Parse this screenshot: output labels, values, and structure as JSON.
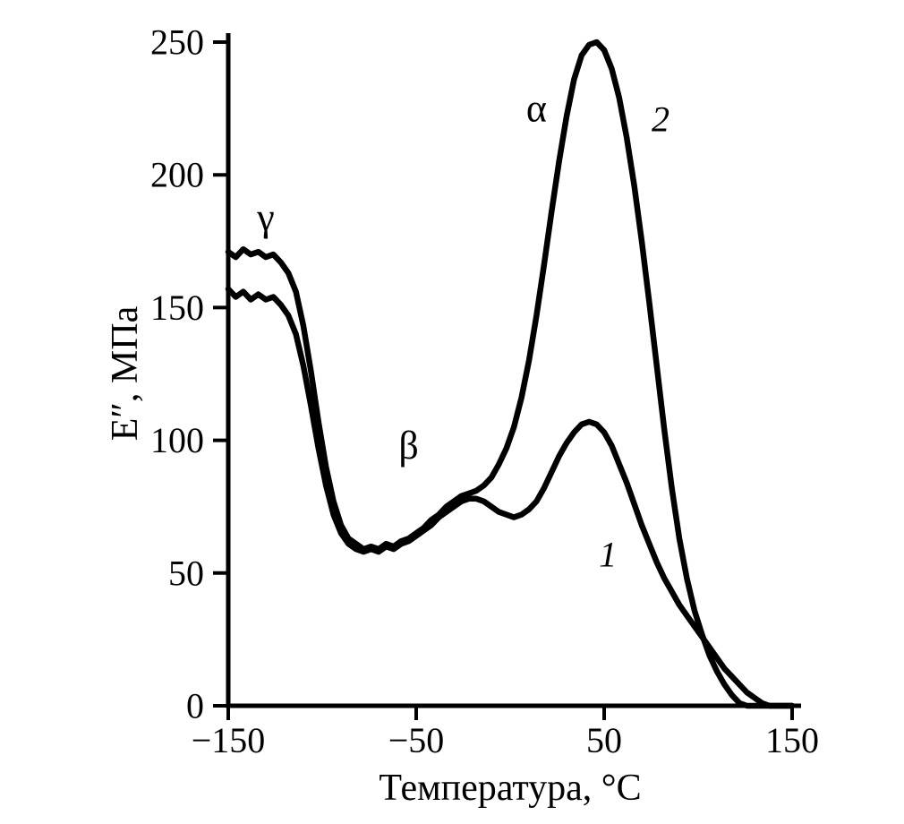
{
  "chart_data": {
    "type": "line",
    "title": "",
    "xlabel": "Температура, °C",
    "ylabel": "E″, МПа",
    "xlim": [
      -150,
      150
    ],
    "ylim": [
      0,
      250
    ],
    "x_ticks": [
      -150,
      -50,
      50,
      150
    ],
    "y_ticks": [
      0,
      50,
      100,
      150,
      200,
      250
    ],
    "grid": false,
    "legend": "none",
    "line_color": "#000000",
    "series": [
      {
        "name": "1",
        "points": [
          [
            -150,
            157
          ],
          [
            -146,
            154
          ],
          [
            -142,
            156
          ],
          [
            -138,
            153
          ],
          [
            -134,
            155
          ],
          [
            -130,
            153
          ],
          [
            -126,
            154
          ],
          [
            -122,
            151
          ],
          [
            -118,
            147
          ],
          [
            -114,
            140
          ],
          [
            -110,
            128
          ],
          [
            -106,
            113
          ],
          [
            -102,
            97
          ],
          [
            -98,
            83
          ],
          [
            -94,
            72
          ],
          [
            -90,
            65
          ],
          [
            -86,
            61
          ],
          [
            -82,
            59
          ],
          [
            -78,
            58
          ],
          [
            -74,
            59
          ],
          [
            -70,
            58
          ],
          [
            -66,
            60
          ],
          [
            -62,
            59
          ],
          [
            -58,
            61
          ],
          [
            -54,
            62
          ],
          [
            -50,
            64
          ],
          [
            -46,
            66
          ],
          [
            -42,
            68
          ],
          [
            -38,
            71
          ],
          [
            -34,
            73
          ],
          [
            -30,
            75
          ],
          [
            -26,
            77
          ],
          [
            -22,
            78
          ],
          [
            -18,
            78
          ],
          [
            -14,
            77
          ],
          [
            -10,
            75
          ],
          [
            -6,
            73
          ],
          [
            -2,
            72
          ],
          [
            2,
            71
          ],
          [
            6,
            72
          ],
          [
            10,
            74
          ],
          [
            14,
            77
          ],
          [
            18,
            82
          ],
          [
            22,
            88
          ],
          [
            26,
            94
          ],
          [
            30,
            99
          ],
          [
            34,
            103
          ],
          [
            38,
            106
          ],
          [
            42,
            107
          ],
          [
            46,
            106
          ],
          [
            50,
            103
          ],
          [
            54,
            98
          ],
          [
            58,
            91
          ],
          [
            62,
            84
          ],
          [
            66,
            76
          ],
          [
            70,
            68
          ],
          [
            74,
            61
          ],
          [
            78,
            54
          ],
          [
            82,
            48
          ],
          [
            86,
            43
          ],
          [
            90,
            38
          ],
          [
            94,
            34
          ],
          [
            98,
            30
          ],
          [
            102,
            26
          ],
          [
            106,
            22
          ],
          [
            110,
            18
          ],
          [
            114,
            14
          ],
          [
            118,
            11
          ],
          [
            122,
            8
          ],
          [
            126,
            5
          ],
          [
            130,
            3
          ],
          [
            134,
            1
          ],
          [
            138,
            0
          ],
          [
            144,
            0
          ],
          [
            150,
            0
          ]
        ]
      },
      {
        "name": "2",
        "points": [
          [
            -150,
            171
          ],
          [
            -146,
            169
          ],
          [
            -142,
            172
          ],
          [
            -138,
            170
          ],
          [
            -134,
            171
          ],
          [
            -130,
            169
          ],
          [
            -126,
            170
          ],
          [
            -122,
            167
          ],
          [
            -118,
            163
          ],
          [
            -114,
            156
          ],
          [
            -110,
            143
          ],
          [
            -106,
            126
          ],
          [
            -102,
            107
          ],
          [
            -98,
            90
          ],
          [
            -94,
            77
          ],
          [
            -90,
            68
          ],
          [
            -86,
            63
          ],
          [
            -82,
            61
          ],
          [
            -78,
            59
          ],
          [
            -74,
            60
          ],
          [
            -70,
            59
          ],
          [
            -66,
            61
          ],
          [
            -62,
            60
          ],
          [
            -58,
            62
          ],
          [
            -54,
            63
          ],
          [
            -50,
            65
          ],
          [
            -46,
            67
          ],
          [
            -42,
            70
          ],
          [
            -38,
            72
          ],
          [
            -34,
            75
          ],
          [
            -30,
            77
          ],
          [
            -26,
            79
          ],
          [
            -22,
            80
          ],
          [
            -18,
            81
          ],
          [
            -14,
            83
          ],
          [
            -10,
            86
          ],
          [
            -6,
            91
          ],
          [
            -2,
            97
          ],
          [
            2,
            105
          ],
          [
            6,
            116
          ],
          [
            10,
            130
          ],
          [
            14,
            147
          ],
          [
            18,
            166
          ],
          [
            22,
            186
          ],
          [
            26,
            205
          ],
          [
            30,
            222
          ],
          [
            34,
            236
          ],
          [
            38,
            245
          ],
          [
            42,
            249
          ],
          [
            46,
            250
          ],
          [
            50,
            247
          ],
          [
            54,
            240
          ],
          [
            58,
            229
          ],
          [
            62,
            214
          ],
          [
            66,
            196
          ],
          [
            70,
            175
          ],
          [
            74,
            152
          ],
          [
            78,
            128
          ],
          [
            82,
            104
          ],
          [
            86,
            82
          ],
          [
            90,
            63
          ],
          [
            94,
            48
          ],
          [
            98,
            36
          ],
          [
            102,
            27
          ],
          [
            106,
            19
          ],
          [
            110,
            13
          ],
          [
            114,
            8
          ],
          [
            118,
            4
          ],
          [
            122,
            1
          ],
          [
            126,
            0
          ],
          [
            132,
            0
          ],
          [
            140,
            0
          ],
          [
            150,
            0
          ]
        ]
      }
    ],
    "annotations": [
      {
        "text": "γ",
        "x": -130,
        "y": 184,
        "italic": false,
        "size": 44
      },
      {
        "text": "β",
        "x": -54,
        "y": 98,
        "italic": false,
        "size": 44
      },
      {
        "text": "α",
        "x": 14,
        "y": 225,
        "italic": false,
        "size": 44
      },
      {
        "text": "2",
        "x": 80,
        "y": 221,
        "italic": true,
        "size": 40
      },
      {
        "text": "1",
        "x": 52,
        "y": 57,
        "italic": true,
        "size": 40
      }
    ]
  }
}
